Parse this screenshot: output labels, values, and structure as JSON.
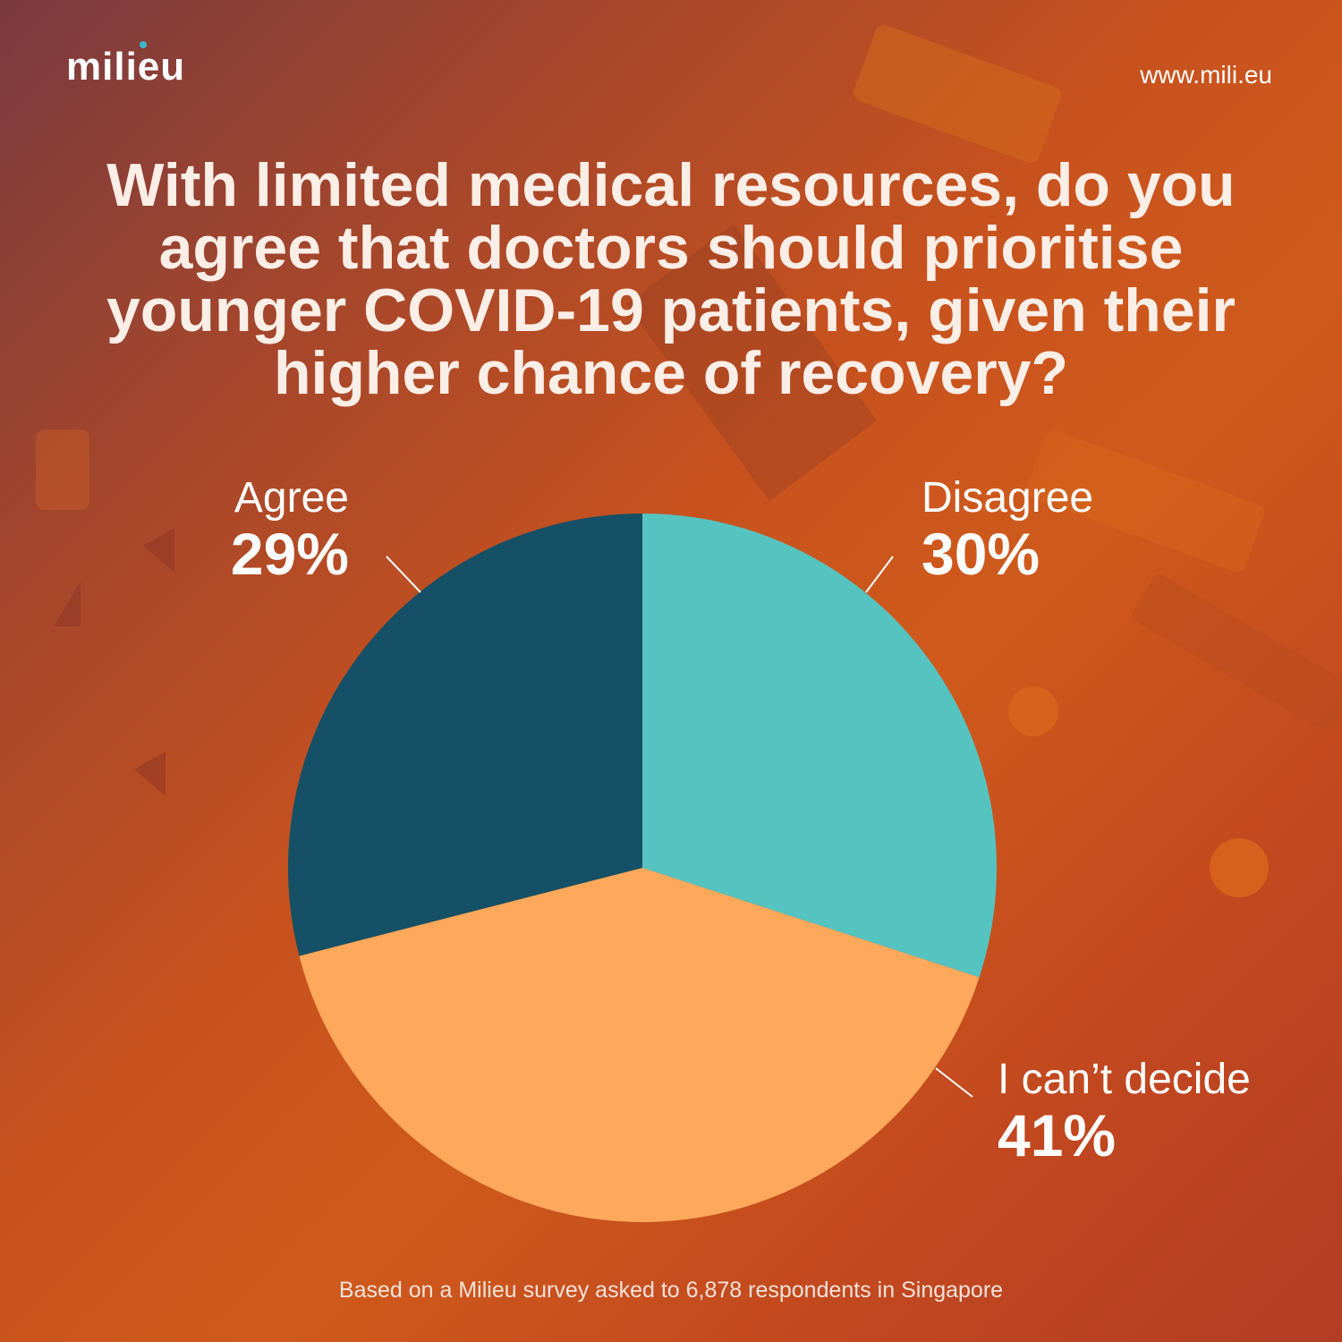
{
  "brand": {
    "logo_text": "milieu",
    "website": "www.mili.eu"
  },
  "title": "With limited medical resources, do you agree that doctors should prioritise younger COVID-19 patients, given their higher chance of recovery?",
  "footer": "Based on a Milieu survey asked to 6,878 respondents in Singapore",
  "colors": {
    "agree": "#155066",
    "disagree": "#55c3c0",
    "cant_decide": "#fda85a",
    "logo_dot": "#3bb7c9"
  },
  "chart_data": {
    "type": "pie",
    "slices": [
      {
        "label": "Disagree",
        "value": 30,
        "value_label": "30%",
        "color": "#55c3c0"
      },
      {
        "label": "I can’t decide",
        "value": 41,
        "value_label": "41%",
        "color": "#fda85a"
      },
      {
        "label": "Agree",
        "value": 29,
        "value_label": "29%",
        "color": "#155066"
      }
    ],
    "start": "12 o'clock, clockwise"
  }
}
